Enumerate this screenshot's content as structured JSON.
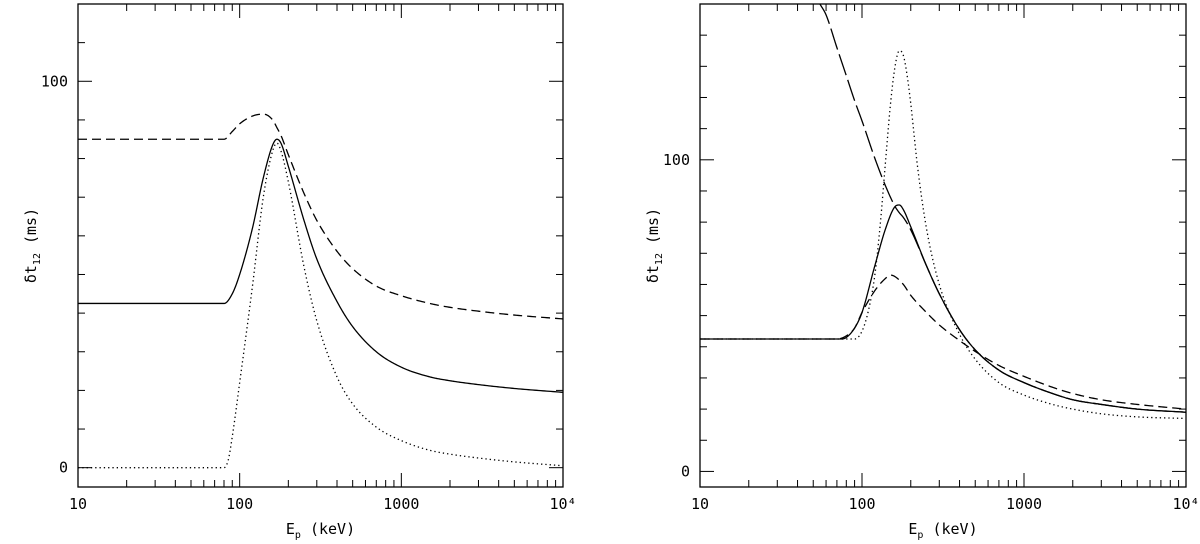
{
  "chart_data": [
    {
      "type": "line",
      "xscale": "log",
      "xlim": [
        10,
        10000
      ],
      "ylim": [
        -5,
        120
      ],
      "xticks": [
        {
          "value": 10,
          "label": "10"
        },
        {
          "value": 100,
          "label": "100"
        },
        {
          "value": 1000,
          "label": "1000"
        },
        {
          "value": 10000,
          "label": "10⁴"
        }
      ],
      "yticks": [
        {
          "value": 0,
          "label": "0"
        },
        {
          "value": 100,
          "label": "100"
        }
      ],
      "yminor_step": 10,
      "xlabel_main": "E",
      "xlabel_sub": "p",
      "xlabel_rest": " (keV)",
      "ylabel_main": "δt",
      "ylabel_sub": "12",
      "ylabel_rest": " (ms)",
      "series": [
        {
          "style": "solid",
          "x": [
            10,
            80,
            90,
            100,
            120,
            140,
            160,
            170,
            180,
            200,
            250,
            300,
            400,
            500,
            700,
            1000,
            1500,
            2000,
            3000,
            5000,
            10000
          ],
          "y": [
            42.5,
            42.5,
            45,
            50,
            62,
            75,
            83.5,
            85,
            84,
            78,
            64,
            54,
            43,
            36.5,
            30,
            26,
            23.5,
            22.5,
            21.5,
            20.5,
            19.5
          ]
        },
        {
          "style": "dashed",
          "x": [
            10,
            80,
            90,
            100,
            120,
            140,
            160,
            170,
            180,
            200,
            250,
            300,
            400,
            500,
            700,
            1000,
            1500,
            2000,
            3000,
            5000,
            10000
          ],
          "y": [
            85,
            85,
            87,
            89,
            91,
            91.5,
            90,
            88,
            86,
            81,
            71,
            64,
            56,
            51.5,
            47,
            44.5,
            42.5,
            41.5,
            40.5,
            39.5,
            38.5
          ]
        },
        {
          "style": "dotted",
          "x": [
            10,
            80,
            85,
            90,
            100,
            120,
            140,
            160,
            170,
            180,
            200,
            250,
            300,
            400,
            500,
            700,
            1000,
            1500,
            2000,
            3000,
            5000,
            10000
          ],
          "y": [
            0,
            0,
            2,
            8,
            22,
            47,
            70,
            82,
            84,
            82,
            74,
            52,
            38,
            23.5,
            16.5,
            10.5,
            7,
            4.5,
            3.5,
            2.5,
            1.5,
            0.5
          ]
        }
      ]
    },
    {
      "type": "line",
      "xscale": "log",
      "xlim": [
        10,
        10000
      ],
      "ylim": [
        -5,
        150
      ],
      "xticks": [
        {
          "value": 10,
          "label": "10"
        },
        {
          "value": 100,
          "label": "100"
        },
        {
          "value": 1000,
          "label": "1000"
        },
        {
          "value": 10000,
          "label": "10⁴"
        }
      ],
      "yticks": [
        {
          "value": 0,
          "label": "0"
        },
        {
          "value": 100,
          "label": "100"
        }
      ],
      "yminor_step": 10,
      "xlabel_main": "E",
      "xlabel_sub": "p",
      "xlabel_rest": " (keV)",
      "ylabel_main": "δt",
      "ylabel_sub": "12",
      "ylabel_rest": " (ms)",
      "series": [
        {
          "style": "solid",
          "x": [
            10,
            75,
            80,
            90,
            100,
            120,
            140,
            160,
            170,
            180,
            200,
            250,
            300,
            400,
            500,
            700,
            1000,
            1500,
            2000,
            3000,
            5000,
            10000
          ],
          "y": [
            42.5,
            42.5,
            43,
            46,
            51,
            66,
            78,
            85,
            85.5,
            84,
            78.5,
            66,
            57,
            45.5,
            39,
            32.5,
            28.5,
            25,
            23,
            21.5,
            20,
            19
          ]
        },
        {
          "style": "dashed",
          "x": [
            10,
            70,
            80,
            90,
            100,
            120,
            140,
            150,
            160,
            180,
            200,
            250,
            300,
            400,
            500,
            700,
            1000,
            1500,
            2000,
            3000,
            5000,
            10000
          ],
          "y": [
            42.5,
            42.5,
            43.5,
            46,
            51,
            58,
            62,
            63,
            62.5,
            60,
            56.5,
            51,
            47,
            42,
            38.5,
            34,
            30.5,
            27,
            25,
            23,
            21.5,
            20
          ]
        },
        {
          "style": "dotted",
          "x": [
            10,
            80,
            90,
            100,
            110,
            120,
            130,
            140,
            150,
            160,
            170,
            180,
            190,
            200,
            220,
            250,
            300,
            400,
            500,
            700,
            1000,
            1500,
            2000,
            3000,
            5000,
            10000
          ],
          "y": [
            42.5,
            42.5,
            42.5,
            45,
            52,
            63,
            80,
            100,
            118,
            130,
            135,
            133.5,
            127,
            118,
            98,
            78,
            60,
            44,
            36,
            28.5,
            24.5,
            21.5,
            20,
            18.5,
            17.5,
            17
          ]
        },
        {
          "style": "longdash",
          "x": [
            55,
            60,
            70,
            80,
            90,
            100,
            120,
            140,
            160,
            170,
            180,
            200,
            250,
            300,
            400,
            500,
            700,
            1000,
            1500,
            2000,
            3000,
            5000,
            10000
          ],
          "y": [
            150,
            146.5,
            136,
            127,
            119,
            112.5,
            100.5,
            91.5,
            85,
            83,
            81.5,
            77.5,
            66,
            57,
            45.5,
            39,
            32.5,
            28.5,
            25,
            23,
            21.5,
            20,
            19
          ]
        }
      ]
    }
  ]
}
